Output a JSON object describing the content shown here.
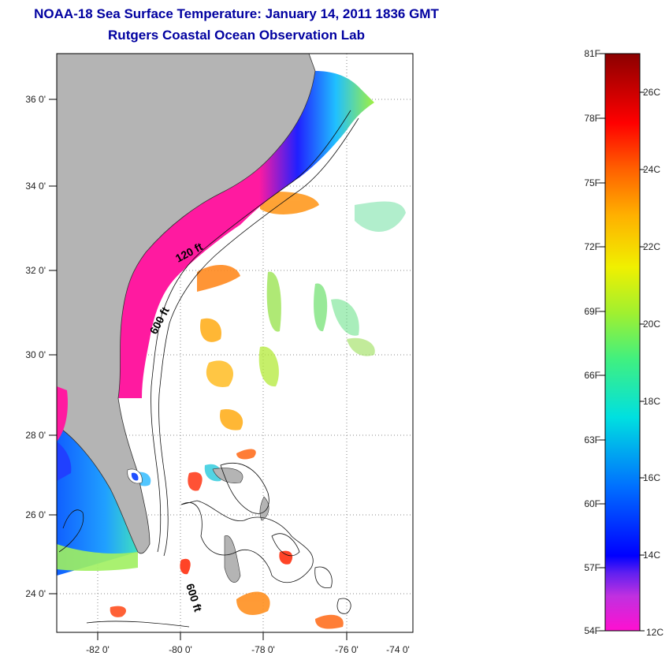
{
  "title": "NOAA-18 Sea Surface Temperature:  January 14, 2011 1836 GMT",
  "subtitle": "Rutgers Coastal Ocean Observation Lab",
  "lat_ticks": [
    "36 0'",
    "34 0'",
    "32 0'",
    "30 0'",
    "28 0'",
    "26 0'",
    "24 0'"
  ],
  "lon_ticks": [
    "-82 0'",
    "-80 0'",
    "-78 0'",
    "-76 0'",
    "-74 0'"
  ],
  "contour_labels": [
    "120 ft",
    "600 ft",
    "600 ft"
  ],
  "colorbar": {
    "fahrenheit": [
      "81F",
      "78F",
      "75F",
      "72F",
      "69F",
      "66F",
      "63F",
      "60F",
      "57F",
      "54F"
    ],
    "celsius": [
      "26C",
      "24C",
      "22C",
      "20C",
      "18C",
      "16C",
      "14C",
      "12C"
    ]
  },
  "colors": {
    "land": "#b4b4b4",
    "coast_cold": "#ff1aa0",
    "title": "#0000a0"
  }
}
